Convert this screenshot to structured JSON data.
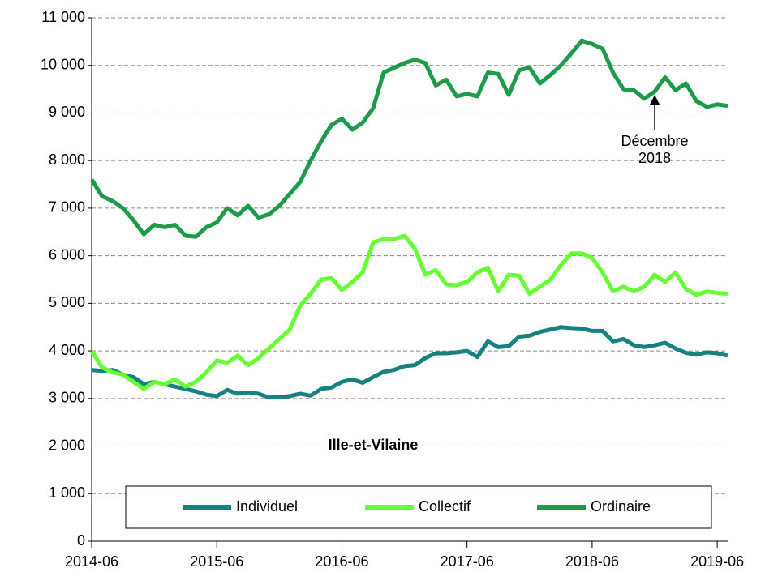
{
  "chart_data": {
    "type": "line",
    "annotation": {
      "text": "Ille-et-Vilaine"
    },
    "callout": {
      "lines": [
        "Décembre",
        "2018"
      ],
      "x": "2018-12",
      "series": 2
    },
    "x": [
      "2014-06",
      "2014-07",
      "2014-08",
      "2014-09",
      "2014-10",
      "2014-11",
      "2014-12",
      "2015-01",
      "2015-02",
      "2015-03",
      "2015-04",
      "2015-05",
      "2015-06",
      "2015-07",
      "2015-08",
      "2015-09",
      "2015-10",
      "2015-11",
      "2015-12",
      "2016-01",
      "2016-02",
      "2016-03",
      "2016-04",
      "2016-05",
      "2016-06",
      "2016-07",
      "2016-08",
      "2016-09",
      "2016-10",
      "2016-11",
      "2016-12",
      "2017-01",
      "2017-02",
      "2017-03",
      "2017-04",
      "2017-05",
      "2017-06",
      "2017-07",
      "2017-08",
      "2017-09",
      "2017-10",
      "2017-11",
      "2017-12",
      "2018-01",
      "2018-02",
      "2018-03",
      "2018-04",
      "2018-05",
      "2018-06",
      "2018-07",
      "2018-08",
      "2018-09",
      "2018-10",
      "2018-11",
      "2018-12",
      "2019-01",
      "2019-02",
      "2019-03",
      "2019-04",
      "2019-05",
      "2019-06",
      "2019-07"
    ],
    "series": [
      {
        "name": "Individuel",
        "color": "#178080",
        "values": [
          3600,
          3580,
          3600,
          3500,
          3450,
          3300,
          3350,
          3300,
          3250,
          3200,
          3150,
          3080,
          3050,
          3180,
          3100,
          3130,
          3100,
          3020,
          3030,
          3050,
          3100,
          3060,
          3200,
          3230,
          3350,
          3400,
          3330,
          3450,
          3560,
          3600,
          3680,
          3700,
          3850,
          3950,
          3950,
          3970,
          4000,
          3870,
          4200,
          4080,
          4100,
          4300,
          4320,
          4400,
          4450,
          4500,
          4480,
          4470,
          4420,
          4420,
          4200,
          4250,
          4120,
          4080,
          4120,
          4170,
          4050,
          3960,
          3920,
          3970,
          3950,
          3900
        ]
      },
      {
        "name": "Collectif",
        "color": "#66ff33",
        "values": [
          4000,
          3650,
          3550,
          3500,
          3350,
          3200,
          3350,
          3300,
          3400,
          3250,
          3350,
          3550,
          3800,
          3750,
          3900,
          3700,
          3850,
          4050,
          4250,
          4450,
          4950,
          5200,
          5500,
          5530,
          5280,
          5450,
          5650,
          6280,
          6350,
          6350,
          6420,
          6150,
          5600,
          5700,
          5400,
          5380,
          5450,
          5650,
          5750,
          5250,
          5600,
          5580,
          5200,
          5350,
          5500,
          5800,
          6050,
          6050,
          5950,
          5650,
          5250,
          5350,
          5250,
          5350,
          5600,
          5450,
          5650,
          5300,
          5180,
          5250,
          5220,
          5200
        ]
      },
      {
        "name": "Ordinaire",
        "color": "#1e9b4a",
        "values": [
          7600,
          7250,
          7150,
          7000,
          6750,
          6450,
          6650,
          6600,
          6650,
          6420,
          6400,
          6600,
          6700,
          7000,
          6850,
          7050,
          6800,
          6870,
          7050,
          7300,
          7550,
          8000,
          8400,
          8750,
          8880,
          8650,
          8800,
          9100,
          9850,
          9950,
          10050,
          10120,
          10050,
          9580,
          9700,
          9350,
          9400,
          9350,
          9850,
          9820,
          9380,
          9900,
          9950,
          9620,
          9800,
          10000,
          10250,
          10520,
          10450,
          10350,
          9850,
          9500,
          9480,
          9300,
          9450,
          9750,
          9480,
          9620,
          9250,
          9130,
          9180,
          9150
        ]
      }
    ],
    "xlim": [
      "2014-06",
      "2019-07"
    ],
    "xticks": [
      "2014-06",
      "2015-06",
      "2016-06",
      "2017-06",
      "2018-06",
      "2019-06"
    ],
    "ylim": [
      0,
      11000
    ],
    "yticks": [
      0,
      {
        "value": 1000,
        "label": "1 000"
      },
      {
        "value": 2000,
        "label": "2 000"
      },
      {
        "value": 3000,
        "label": "3 000"
      },
      {
        "value": 4000,
        "label": "4 000"
      },
      {
        "value": 5000,
        "label": "5 000"
      },
      {
        "value": 6000,
        "label": "6 000"
      },
      {
        "value": 7000,
        "label": "7 000"
      },
      {
        "value": 8000,
        "label": "8 000"
      },
      {
        "value": 9000,
        "label": "9 000"
      },
      {
        "value": 10000,
        "label": "10 000"
      },
      {
        "value": 11000,
        "label": "11 000"
      }
    ],
    "grid": true,
    "legend": "bottom"
  }
}
